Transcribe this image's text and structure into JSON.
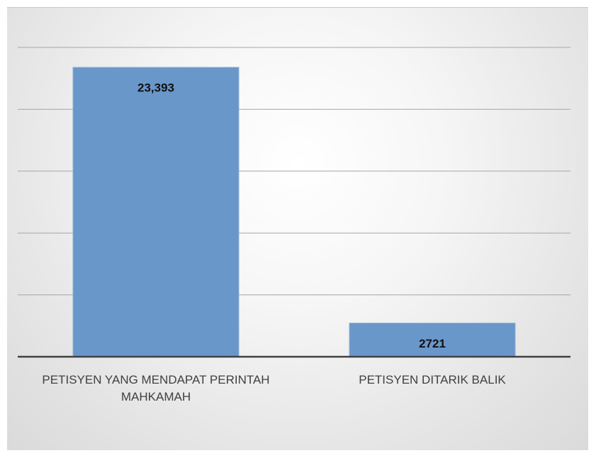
{
  "chart_data": {
    "type": "bar",
    "categories": [
      "PETISYEN YANG MENDAPAT PERINTAH MAHKAMAH",
      "PETISYEN DITARIK BALIK"
    ],
    "values": [
      23393,
      2721
    ],
    "value_labels": [
      "23,393",
      "2721"
    ],
    "color": "#6a97ca",
    "ylim": [
      0,
      25000
    ],
    "yticks": [
      0,
      5000,
      10000,
      15000,
      20000,
      25000
    ],
    "grid": true
  }
}
